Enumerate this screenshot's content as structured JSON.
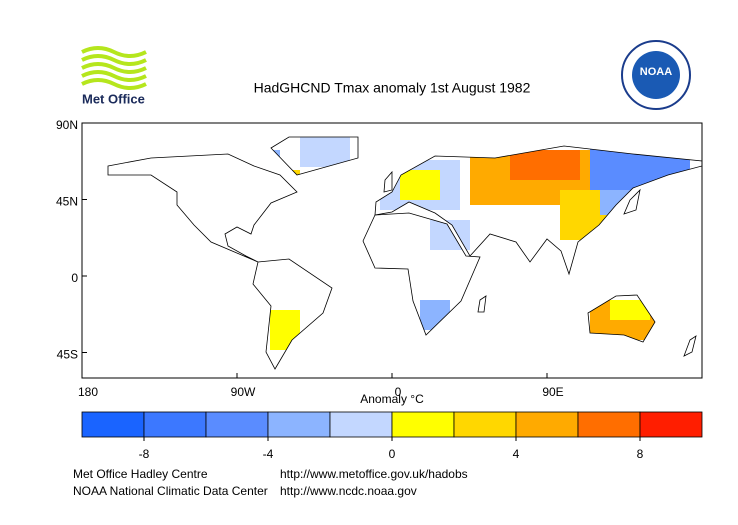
{
  "header": {
    "logo_left": "Met Office",
    "logo_right": "NOAA",
    "title": "HadGHCND Tmax anomaly 1st August 1982"
  },
  "map": {
    "xlim": [
      -180,
      180
    ],
    "ylim": [
      -60,
      90
    ],
    "xticks": [
      {
        "value": -180,
        "label": "180"
      },
      {
        "value": -90,
        "label": "90W"
      },
      0,
      {
        "value": 90,
        "label": "90E"
      }
    ],
    "yticks": [
      {
        "value": 90,
        "label": "90N"
      },
      {
        "value": 45,
        "label": "45N"
      },
      0,
      {
        "value": -45,
        "label": "45S"
      }
    ]
  },
  "colorbar": {
    "label": "Anomaly °C",
    "lim": [
      -10,
      10
    ],
    "ticks": [
      -8,
      -4,
      0,
      4,
      8
    ],
    "colors": [
      "#1a64ff",
      "#3c78ff",
      "#5a8cff",
      "#8cb4ff",
      "#c3d7ff",
      "#ffff00",
      "#ffd700",
      "#ffaa00",
      "#ff6e00",
      "#ff1e00"
    ]
  },
  "footer": {
    "rows": [
      [
        "Met Office Hadley Centre",
        "http://www.metoffice.gov.uk/hadobs"
      ],
      [
        "NOAA National Climatic Data Center",
        "http://www.ncdc.noaa.gov"
      ]
    ]
  }
}
